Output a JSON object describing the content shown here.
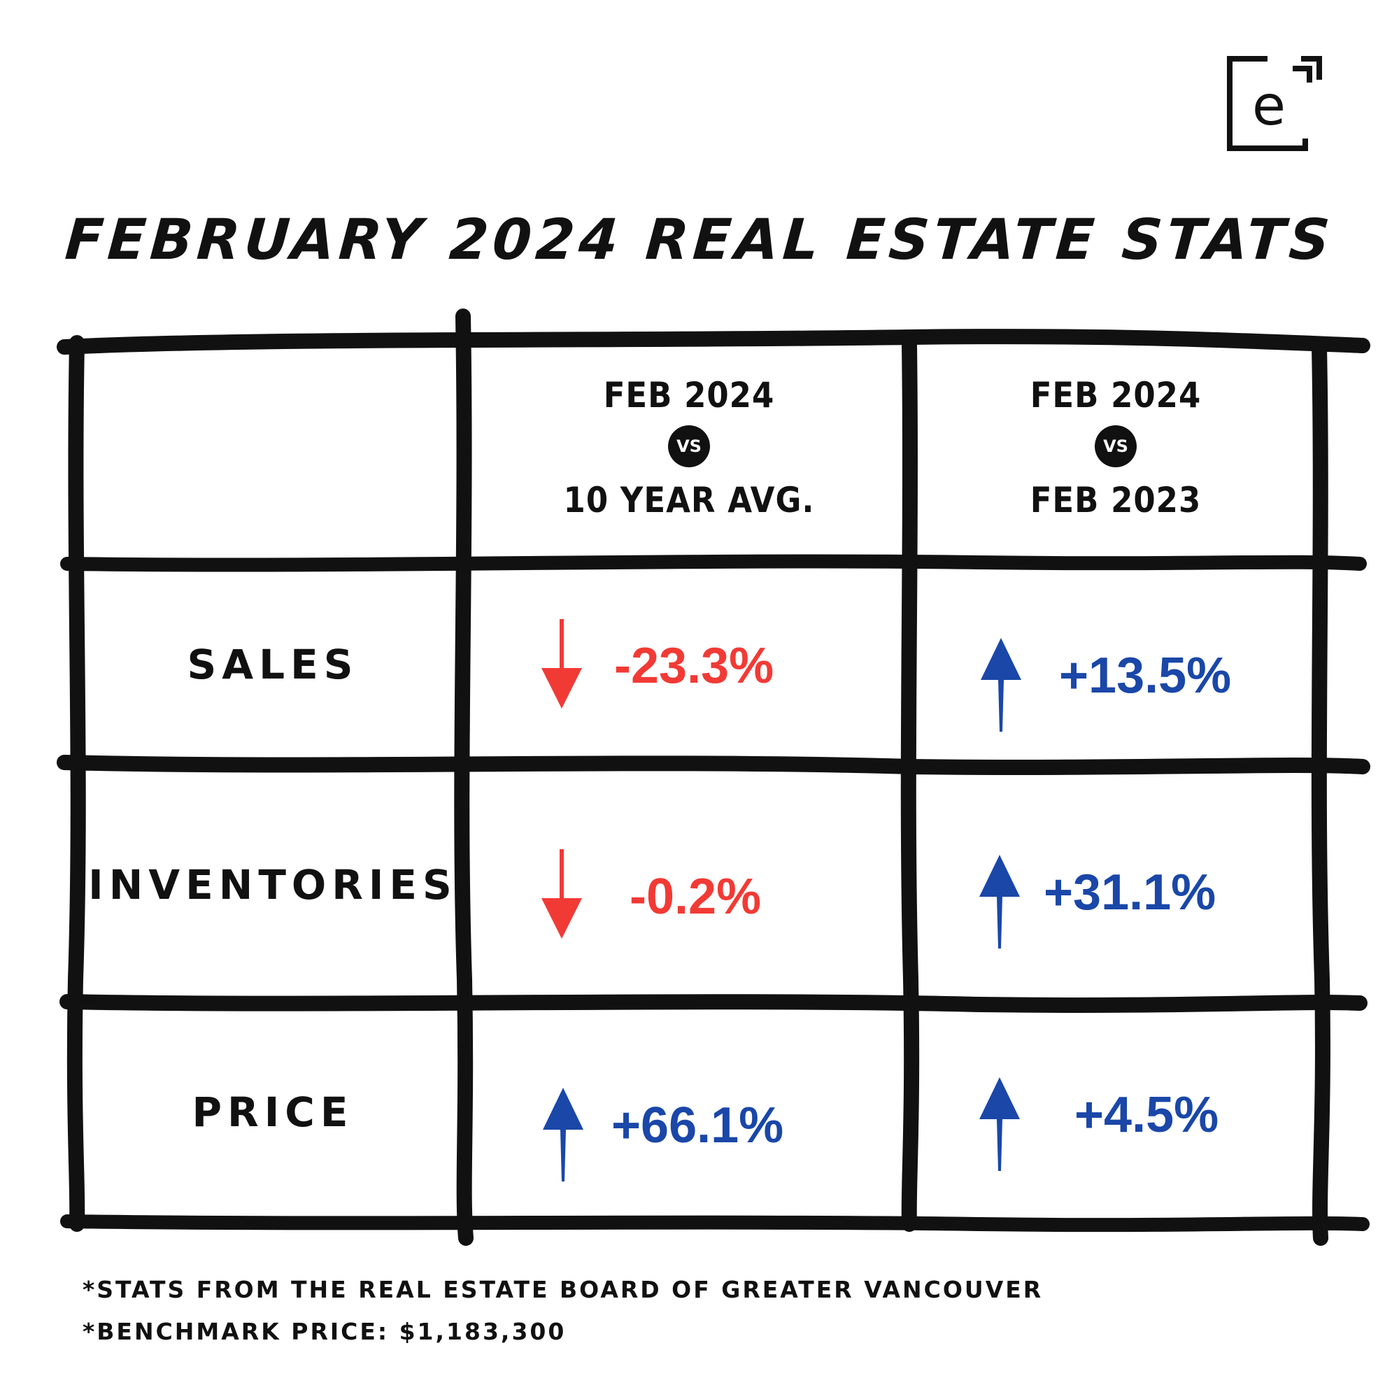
{
  "title": "FEBRUARY 2024 REAL ESTATE STATS",
  "logo": {
    "letter": "e",
    "icon": "bracket-e-logo-icon"
  },
  "colors": {
    "up": "#1a47a8",
    "down": "#f23a35",
    "ink": "#111111"
  },
  "columns": [
    {
      "line1": "FEB 2024",
      "vs": "VS",
      "line2": "10 YEAR AVG."
    },
    {
      "line1": "FEB 2024",
      "vs": "VS",
      "line2": "FEB 2023"
    }
  ],
  "rows": [
    {
      "label": "SALES",
      "values": [
        {
          "text": "-23.3%",
          "direction": "down"
        },
        {
          "text": "+13.5%",
          "direction": "up"
        }
      ]
    },
    {
      "label": "INVENTORIES",
      "values": [
        {
          "text": "-0.2%",
          "direction": "down"
        },
        {
          "text": "+31.1%",
          "direction": "up"
        }
      ]
    },
    {
      "label": "PRICE",
      "values": [
        {
          "text": "+66.1%",
          "direction": "up"
        },
        {
          "text": "+4.5%",
          "direction": "up"
        }
      ]
    }
  ],
  "footnotes": [
    "*STATS FROM THE REAL ESTATE BOARD OF GREATER VANCOUVER",
    "*BENCHMARK PRICE: $1,183,300"
  ]
}
